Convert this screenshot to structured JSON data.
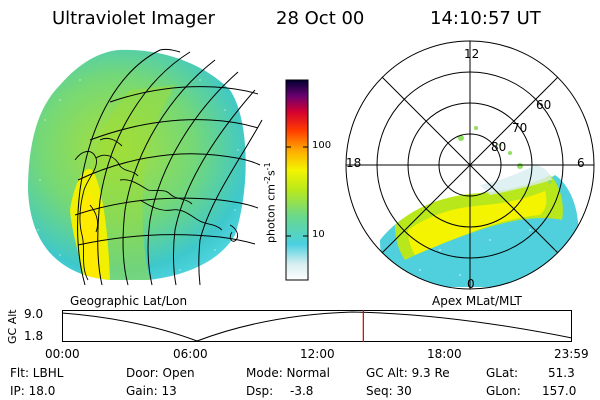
{
  "header": {
    "instrument": "Ultraviolet Imager",
    "date": "28 Oct 00",
    "time": "14:10:57 UT"
  },
  "left_panel": {
    "caption": "Geographic Lat/Lon"
  },
  "right_panel": {
    "caption": "Apex MLat/MLT",
    "mlt_labels": [
      "12",
      "18",
      "6",
      "0"
    ],
    "lat_labels": [
      "60",
      "70",
      "80"
    ]
  },
  "colorbar": {
    "unit_text": "photon cm",
    "unit_exp1": "-2",
    "unit_mid": "s",
    "unit_exp2": "-1",
    "ticks": [
      "100",
      "10"
    ]
  },
  "timeline": {
    "ylabel": "GC Alt",
    "y_ticks": [
      "9.0",
      "1.8"
    ],
    "x_ticks": [
      "00:00",
      "06:00",
      "12:00",
      "18:00",
      "23:59"
    ],
    "current_hour": 14.18
  },
  "info": {
    "flt": "Flt: LBHL",
    "ip": "IP: 18.0",
    "door": "Door: Open",
    "gain": "Gain: 13",
    "mode": "Mode: Normal",
    "dsp": "Dsp:",
    "dsp_val": "-3.8",
    "gcalt": "GC Alt: 9.3 Re",
    "seq": "Seq: 30",
    "glat_label": "GLat:",
    "glat_val": "51.3",
    "glon_label": "GLon:",
    "glon_val": "157.0"
  },
  "colors": {
    "aurora_high": "#f4f400",
    "aurora_mid": "#b8e81c",
    "aurora_low": "#6ad88a",
    "aurora_base": "#36c8d8",
    "timeline_marker": "#cc0000"
  }
}
